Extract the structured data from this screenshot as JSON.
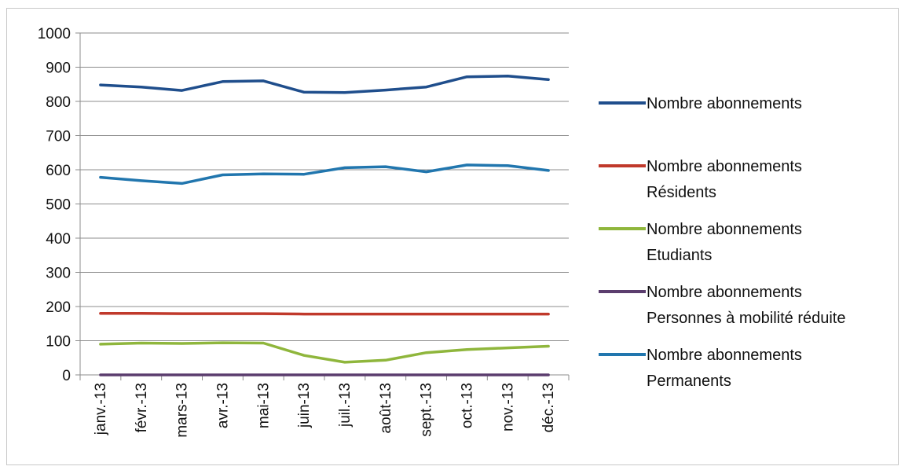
{
  "chart_data": {
    "type": "line",
    "title": "",
    "xlabel": "",
    "ylabel": "",
    "categories": [
      "janv.-13",
      "févr.-13",
      "mars-13",
      "avr.-13",
      "mai-13",
      "juin-13",
      "juil.-13",
      "août-13",
      "sept.-13",
      "oct.-13",
      "nov.-13",
      "déc.-13"
    ],
    "ylim": [
      0,
      1000
    ],
    "yticks": [
      "0",
      "100",
      "200",
      "300",
      "400",
      "500",
      "600",
      "700",
      "800",
      "900",
      "1000"
    ],
    "grid": true,
    "legend_position": "right",
    "series": [
      {
        "name": "Nombre abonnements",
        "color": "#1f4e8c",
        "values": [
          848,
          842,
          832,
          858,
          860,
          827,
          826,
          833,
          842,
          872,
          874,
          864
        ]
      },
      {
        "name": "Nombre abonnements Résidents",
        "color": "#c0392b",
        "values": [
          180,
          180,
          179,
          179,
          179,
          178,
          178,
          178,
          178,
          178,
          178,
          178
        ]
      },
      {
        "name": "Nombre abonnements Etudiants",
        "color": "#8fb63c",
        "values": [
          90,
          93,
          92,
          94,
          93,
          57,
          37,
          43,
          65,
          74,
          79,
          84
        ]
      },
      {
        "name": "Nombre abonnements Personnes à mobilité réduite",
        "color": "#5b3d6e",
        "values": [
          0,
          0,
          0,
          0,
          0,
          0,
          0,
          0,
          0,
          0,
          0,
          0
        ]
      },
      {
        "name": "Nombre abonnements Permanents",
        "color": "#2176ae",
        "values": [
          578,
          568,
          560,
          585,
          588,
          587,
          606,
          609,
          594,
          614,
          612,
          598
        ]
      }
    ],
    "legend_lines": [
      [
        "Nombre abonnements"
      ],
      [
        "Nombre abonnements",
        "Résidents"
      ],
      [
        "Nombre abonnements",
        "Etudiants"
      ],
      [
        "Nombre abonnements",
        "Personnes à mobilité réduite"
      ],
      [
        "Nombre abonnements",
        "Permanents"
      ]
    ]
  }
}
